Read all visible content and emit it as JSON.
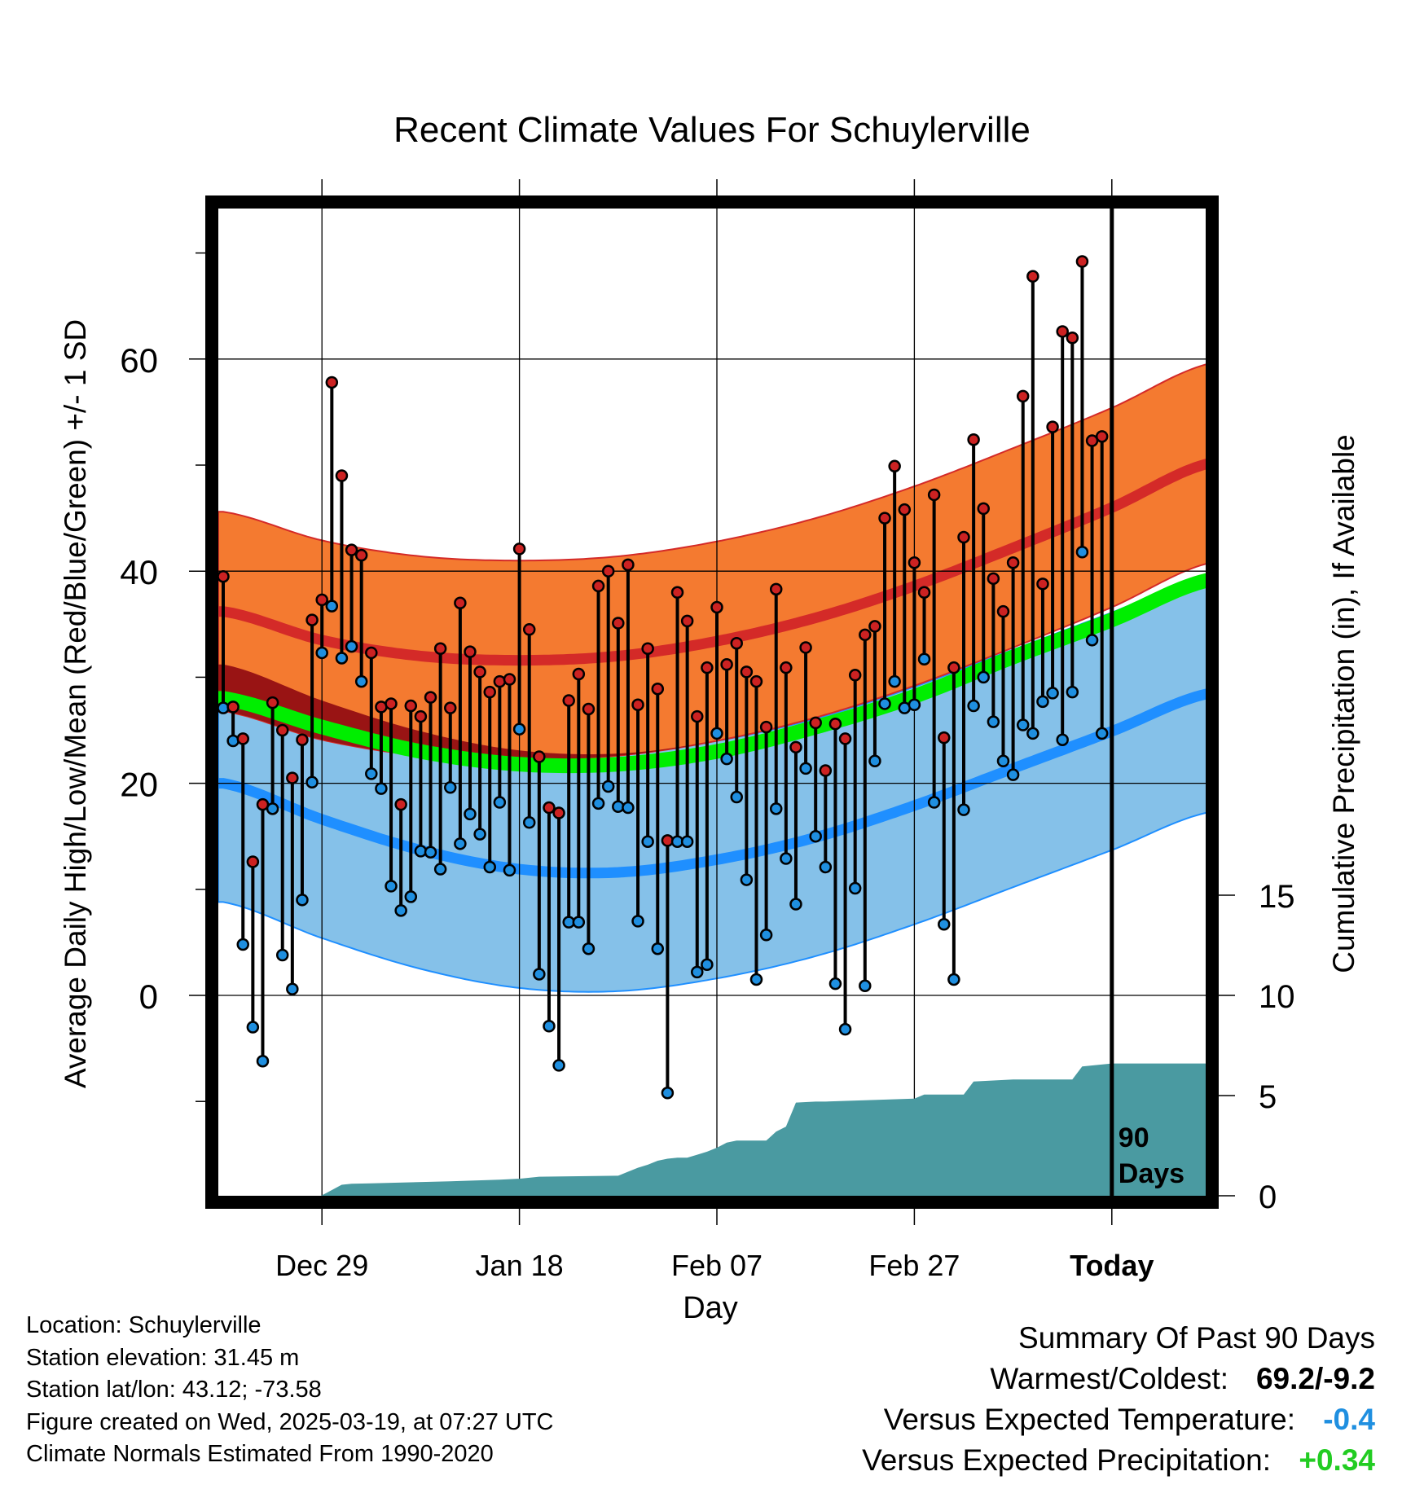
{
  "title": "Recent Climate Values For Schuylerville",
  "colors": {
    "high_band": "#f47a30",
    "high_mean": "#d42a28",
    "low_band": "#85c1e9",
    "low_mean": "#1f8fff",
    "overlap": "#991414",
    "normal_mean": "#00ee00",
    "precip": "#4a9aa1",
    "observed_high": "#cc2222",
    "observed_low": "#1f8fe0",
    "warm_coldest": "#000000",
    "temp_departure": "#1f8fe0",
    "precip_departure": "#22cc22"
  },
  "chart_data": {
    "type": "line",
    "title": "Recent Climate Values For Schuylerville",
    "xlabel": "Day",
    "ylabel": "Average Daily High/Low/Mean (Red/Blue/Green) +/- 1 SD",
    "y2label": "Cumulative Precipitation (in), If Available",
    "x_range_days": [
      0,
      100
    ],
    "ylim": [
      -18.5,
      74.5
    ],
    "y_ticks": [
      0,
      20,
      40,
      60
    ],
    "y_minor_ticks": [
      -10,
      10,
      30,
      50,
      70
    ],
    "y2_ticks": [
      0,
      5,
      10,
      15
    ],
    "y2lim": [
      0,
      15
    ],
    "x_ticks": [
      {
        "day": 10,
        "label": "Dec 29"
      },
      {
        "day": 30,
        "label": "Jan 18"
      },
      {
        "day": 50,
        "label": "Feb 07"
      },
      {
        "day": 70,
        "label": "Feb 27"
      },
      {
        "day": 90,
        "label": "Today"
      }
    ],
    "today_marker": {
      "day": 90,
      "label_line1": "90",
      "label_line2": "Days"
    },
    "grid": true,
    "normals": {
      "days": [
        0,
        10,
        20,
        30,
        40,
        50,
        60,
        70,
        80,
        90,
        100
      ],
      "high_mean": [
        36.2,
        33.5,
        32.0,
        31.6,
        32.0,
        33.4,
        35.6,
        38.6,
        42.2,
        46.0,
        50.2
      ],
      "high_sd": 9.4,
      "low_mean": [
        20.0,
        16.6,
        13.7,
        11.9,
        11.6,
        12.8,
        14.9,
        17.9,
        21.4,
        24.9,
        28.5
      ],
      "low_sd": 11.2,
      "normal_mean": [
        28.0,
        25.3,
        23.0,
        21.8,
        21.8,
        23.0,
        25.3,
        28.2,
        31.9,
        35.4,
        39.2
      ]
    },
    "observed": {
      "days": [
        0,
        1,
        2,
        3,
        4,
        5,
        6,
        7,
        8,
        9,
        10,
        11,
        12,
        13,
        14,
        15,
        16,
        17,
        18,
        19,
        20,
        21,
        22,
        23,
        24,
        25,
        26,
        27,
        28,
        29,
        30,
        31,
        32,
        33,
        34,
        35,
        36,
        37,
        38,
        39,
        40,
        41,
        42,
        43,
        44,
        45,
        46,
        47,
        48,
        49,
        50,
        51,
        52,
        53,
        54,
        55,
        56,
        57,
        58,
        59,
        60,
        61,
        62,
        63,
        64,
        65,
        66,
        67,
        68,
        69,
        70,
        71,
        72,
        73,
        74,
        75,
        76,
        77,
        78,
        79,
        80,
        81,
        82,
        83,
        84,
        85,
        86,
        87,
        88,
        89
      ],
      "high": [
        39.5,
        27.2,
        24.2,
        12.6,
        18.0,
        27.6,
        25.0,
        20.5,
        24.1,
        35.4,
        37.3,
        57.8,
        49.0,
        42.0,
        41.5,
        32.3,
        27.2,
        27.5,
        18.0,
        27.3,
        26.3,
        28.1,
        32.7,
        27.1,
        37.0,
        32.4,
        30.5,
        28.6,
        29.6,
        29.8,
        42.1,
        34.5,
        22.5,
        17.7,
        17.2,
        27.8,
        30.3,
        27.0,
        38.6,
        40.0,
        35.1,
        40.6,
        27.4,
        32.7,
        28.9,
        14.6,
        38.0,
        35.3,
        26.3,
        30.9,
        36.6,
        31.2,
        33.2,
        30.5,
        29.6,
        25.3,
        38.3,
        30.9,
        23.4,
        32.8,
        25.7,
        21.2,
        25.6,
        24.2,
        30.2,
        34.0,
        34.8,
        45.0,
        49.9,
        45.8,
        40.8,
        38.0,
        47.2,
        24.3,
        30.9,
        43.2,
        52.4,
        45.9,
        39.3,
        36.2,
        40.8,
        56.5,
        67.8,
        38.8,
        53.6,
        62.6,
        62.0,
        69.2,
        52.3,
        52.7
      ],
      "low": [
        27.1,
        24.0,
        4.8,
        -3.0,
        -6.2,
        17.6,
        3.8,
        0.6,
        9.0,
        20.1,
        32.3,
        36.7,
        31.8,
        32.9,
        29.6,
        20.9,
        19.5,
        10.3,
        8.0,
        9.3,
        13.6,
        13.5,
        11.9,
        19.6,
        14.3,
        17.1,
        15.2,
        12.1,
        18.2,
        11.8,
        25.1,
        16.3,
        2.0,
        -2.9,
        -6.6,
        6.9,
        6.9,
        4.4,
        18.1,
        19.7,
        17.8,
        17.7,
        7.0,
        14.5,
        4.4,
        -9.2,
        14.5,
        14.5,
        2.2,
        2.9,
        24.7,
        22.3,
        18.7,
        10.9,
        1.5,
        5.7,
        17.6,
        12.9,
        8.6,
        21.4,
        15.0,
        12.1,
        1.1,
        -3.2,
        10.1,
        0.9,
        22.1,
        27.5,
        29.6,
        27.1,
        27.4,
        31.7,
        18.2,
        6.7,
        1.5,
        17.5,
        27.3,
        30.0,
        25.8,
        22.1,
        20.8,
        25.5,
        24.7,
        27.7,
        28.5,
        24.1,
        28.6,
        41.8,
        33.5,
        24.7
      ]
    },
    "precip_cumulative": {
      "days": [
        0,
        9.9,
        10.5,
        12,
        13,
        15,
        23,
        28,
        30,
        32,
        40,
        41,
        42,
        43,
        44,
        45,
        46,
        47,
        48,
        49,
        50,
        51,
        52,
        55,
        56,
        57,
        58,
        60,
        61,
        70,
        71,
        75,
        76,
        80,
        86,
        87,
        90,
        100
      ],
      "values": [
        0,
        0,
        0.15,
        0.55,
        0.6,
        0.62,
        0.72,
        0.8,
        0.85,
        0.95,
        1.0,
        1.2,
        1.4,
        1.55,
        1.75,
        1.85,
        1.9,
        1.9,
        2.05,
        2.2,
        2.4,
        2.65,
        2.75,
        2.75,
        3.2,
        3.45,
        4.65,
        4.7,
        4.7,
        4.85,
        5.05,
        5.05,
        5.7,
        5.8,
        5.8,
        6.45,
        6.6,
        6.6
      ]
    }
  },
  "footer": {
    "location": "Location: Schuylerville",
    "elevation": "Station elevation: 31.45 m",
    "latlon": "Station lat/lon: 43.12; -73.58",
    "created": "Figure created on Wed, 2025-03-19, at 07:27 UTC",
    "normals": "Climate Normals Estimated From 1990-2020"
  },
  "summary": {
    "heading": "Summary Of Past 90 Days",
    "warm_label": "Warmest/Coldest:",
    "warm_value": "69.2/-9.2",
    "temp_label": "Versus Expected Temperature:",
    "temp_value": "-0.4",
    "precip_label": "Versus Expected Precipitation:",
    "precip_value": "+0.34"
  }
}
